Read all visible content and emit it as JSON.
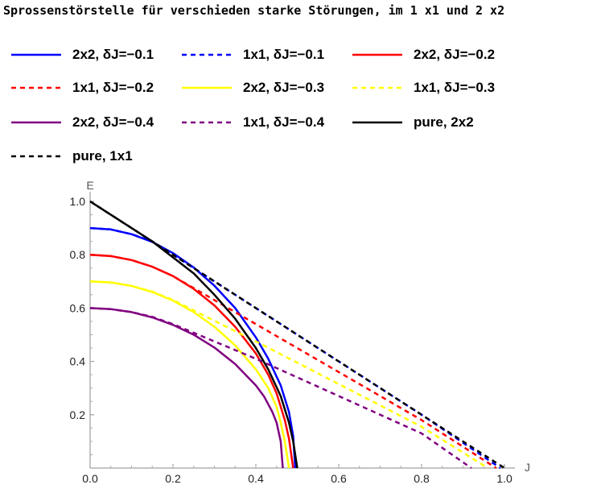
{
  "title": "Sprossenstörstelle für verschieden starke Störungen,  im 1 x1 und 2 x2",
  "chart_data": {
    "type": "line",
    "title": "Sprossenstörstelle für verschieden starke Störungen,  im 1 x1 und 2 x2",
    "xlabel": "J",
    "ylabel": "E",
    "xlim": [
      0,
      1
    ],
    "ylim": [
      0,
      1
    ],
    "xticks": [
      "0.0",
      "0.2",
      "0.4",
      "0.6",
      "0.8",
      "1.0"
    ],
    "yticks": [
      "0.2",
      "0.4",
      "0.6",
      "0.8",
      "1.0"
    ],
    "legend_position": "top",
    "series": [
      {
        "name": "2x2, δJ=−0.1",
        "color": "#0000ff",
        "dash": "solid",
        "x": [
          0,
          0.05,
          0.1,
          0.15,
          0.2,
          0.25,
          0.3,
          0.35,
          0.4,
          0.43,
          0.46,
          0.48,
          0.49,
          0.495
        ],
        "y": [
          0.9,
          0.895,
          0.877,
          0.848,
          0.806,
          0.752,
          0.684,
          0.6,
          0.49,
          0.41,
          0.31,
          0.21,
          0.12,
          0
        ]
      },
      {
        "name": "1x1, δJ=−0.1",
        "color": "#0000ff",
        "dash": "dashed",
        "x": [
          0,
          0.05,
          0.1,
          0.15,
          0.2,
          0.4,
          0.6,
          0.8,
          0.99
        ],
        "y": [
          0.9,
          0.895,
          0.877,
          0.85,
          0.8,
          0.6,
          0.4,
          0.2,
          0
        ]
      },
      {
        "name": "2x2, δJ=−0.2",
        "color": "#ff0000",
        "dash": "solid",
        "x": [
          0,
          0.05,
          0.1,
          0.15,
          0.2,
          0.25,
          0.3,
          0.35,
          0.4,
          0.43,
          0.45,
          0.47,
          0.48,
          0.49
        ],
        "y": [
          0.8,
          0.795,
          0.78,
          0.755,
          0.72,
          0.672,
          0.61,
          0.53,
          0.43,
          0.35,
          0.28,
          0.18,
          0.11,
          0
        ]
      },
      {
        "name": "1x1, δJ=−0.2",
        "color": "#ff0000",
        "dash": "dashed",
        "x": [
          0,
          0.05,
          0.1,
          0.15,
          0.2,
          0.4,
          0.6,
          0.8,
          0.98
        ],
        "y": [
          0.8,
          0.795,
          0.78,
          0.755,
          0.72,
          0.54,
          0.36,
          0.18,
          0
        ]
      },
      {
        "name": "2x2, δJ=−0.3",
        "color": "#ffff00",
        "dash": "solid",
        "x": [
          0,
          0.05,
          0.1,
          0.15,
          0.2,
          0.25,
          0.3,
          0.35,
          0.4,
          0.43,
          0.45,
          0.46,
          0.47,
          0.48
        ],
        "y": [
          0.7,
          0.696,
          0.683,
          0.66,
          0.628,
          0.585,
          0.53,
          0.46,
          0.37,
          0.3,
          0.23,
          0.17,
          0.1,
          0
        ]
      },
      {
        "name": "1x1, δJ=−0.3",
        "color": "#ffff00",
        "dash": "dashed",
        "x": [
          0,
          0.05,
          0.1,
          0.15,
          0.2,
          0.4,
          0.6,
          0.8,
          0.96
        ],
        "y": [
          0.7,
          0.696,
          0.683,
          0.662,
          0.63,
          0.475,
          0.315,
          0.155,
          0
        ]
      },
      {
        "name": "2x2, δJ=−0.4",
        "color": "#800080",
        "dash": "solid",
        "x": [
          0,
          0.05,
          0.1,
          0.15,
          0.2,
          0.25,
          0.3,
          0.35,
          0.4,
          0.42,
          0.44,
          0.45,
          0.46,
          0.465
        ],
        "y": [
          0.6,
          0.596,
          0.585,
          0.565,
          0.537,
          0.5,
          0.452,
          0.39,
          0.31,
          0.268,
          0.21,
          0.17,
          0.1,
          0
        ]
      },
      {
        "name": "1x1, δJ=−0.4",
        "color": "#800080",
        "dash": "dashed",
        "x": [
          0,
          0.05,
          0.1,
          0.15,
          0.2,
          0.4,
          0.6,
          0.8,
          0.92
        ],
        "y": [
          0.6,
          0.596,
          0.585,
          0.567,
          0.54,
          0.41,
          0.27,
          0.13,
          0
        ]
      },
      {
        "name": "pure, 2x2",
        "color": "#000000",
        "dash": "solid",
        "x": [
          0,
          0.05,
          0.1,
          0.15,
          0.2,
          0.25,
          0.3,
          0.35,
          0.4,
          0.43,
          0.46,
          0.48,
          0.49,
          0.5
        ],
        "y": [
          1.0,
          0.95,
          0.9,
          0.85,
          0.79,
          0.73,
          0.65,
          0.56,
          0.45,
          0.37,
          0.27,
          0.17,
          0.1,
          0
        ]
      },
      {
        "name": "pure, 1x1",
        "color": "#000000",
        "dash": "dashed",
        "x": [
          0,
          1.0
        ],
        "y": [
          1.0,
          0
        ]
      }
    ]
  },
  "legend": [
    {
      "label": "2x2, δJ=−0.1",
      "color": "#0000ff",
      "dash": "solid"
    },
    {
      "label": "1x1, δJ=−0.1",
      "color": "#0000ff",
      "dash": "dashed"
    },
    {
      "label": "2x2, δJ=−0.2",
      "color": "#ff0000",
      "dash": "solid"
    },
    {
      "label": "1x1, δJ=−0.2",
      "color": "#ff0000",
      "dash": "dashed"
    },
    {
      "label": "2x2, δJ=−0.3",
      "color": "#ffff00",
      "dash": "solid"
    },
    {
      "label": "1x1, δJ=−0.3",
      "color": "#ffff00",
      "dash": "dashed"
    },
    {
      "label": "2x2, δJ=−0.4",
      "color": "#800080",
      "dash": "solid"
    },
    {
      "label": "1x1, δJ=−0.4",
      "color": "#800080",
      "dash": "dashed"
    },
    {
      "label": "pure, 2x2",
      "color": "#000000",
      "dash": "solid"
    },
    {
      "label": "pure, 1x1",
      "color": "#000000",
      "dash": "dashed"
    }
  ]
}
